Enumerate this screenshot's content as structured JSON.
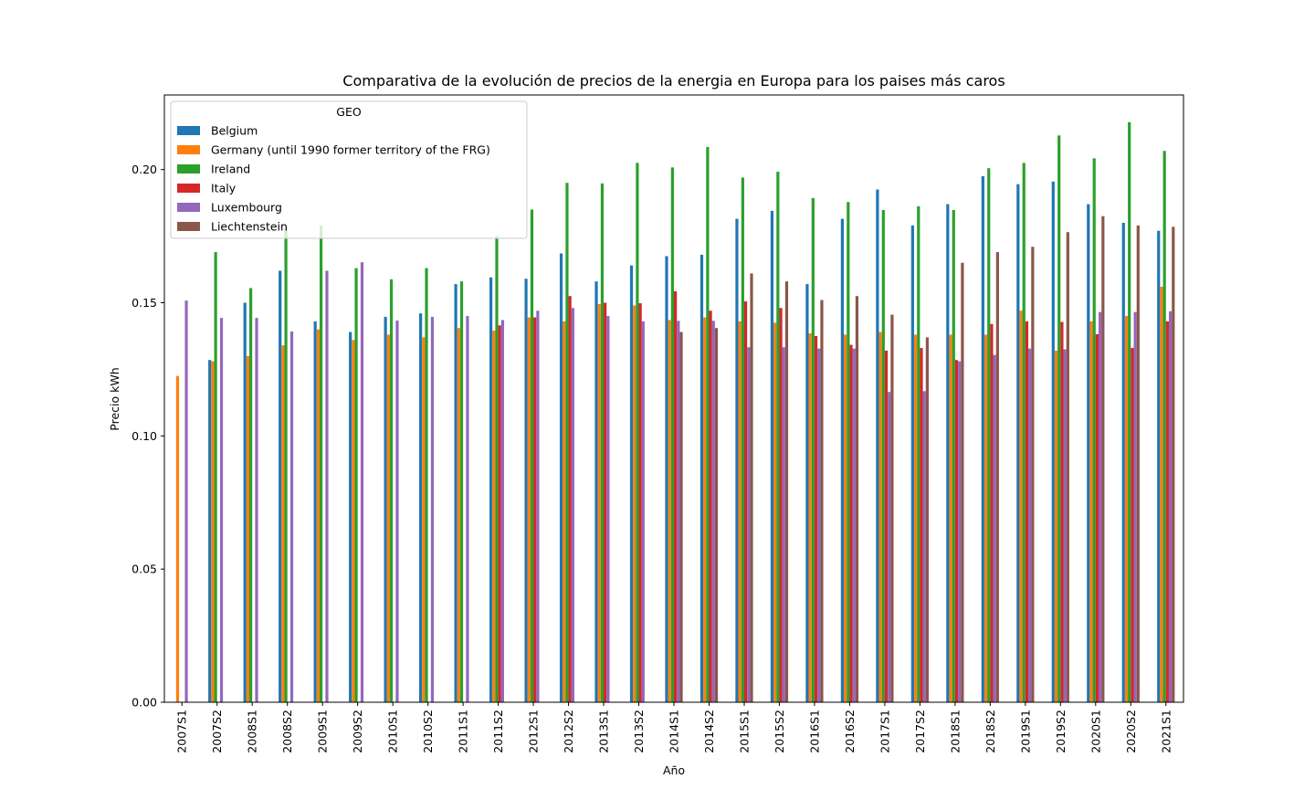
{
  "chart_data": {
    "type": "bar",
    "title": "Comparativa de la evolución de precios de la energia en Europa para los paises más caros",
    "xlabel": "Año",
    "ylabel": "Precio kWh",
    "ylim": [
      0,
      0.228
    ],
    "yticks": [
      0.0,
      0.05,
      0.1,
      0.15,
      0.2
    ],
    "ytick_labels": [
      "0.00",
      "0.05",
      "0.10",
      "0.15",
      "0.20"
    ],
    "grid": false,
    "legend": {
      "title": "GEO",
      "placement": "upper-left"
    },
    "categories": [
      "2007S1",
      "2007S2",
      "2008S1",
      "2008S2",
      "2009S1",
      "2009S2",
      "2010S1",
      "2010S2",
      "2011S1",
      "2011S2",
      "2012S1",
      "2012S2",
      "2013S1",
      "2013S2",
      "2014S1",
      "2014S2",
      "2015S1",
      "2015S2",
      "2016S1",
      "2016S2",
      "2017S1",
      "2017S2",
      "2018S1",
      "2018S2",
      "2019S1",
      "2019S2",
      "2020S1",
      "2020S2",
      "2021S1"
    ],
    "series": [
      {
        "name": "Belgium",
        "color": "#1f77b4",
        "values": [
          null,
          0.1285,
          0.15,
          0.162,
          0.143,
          0.139,
          0.1447,
          0.146,
          0.157,
          0.1595,
          0.159,
          0.1685,
          0.158,
          0.164,
          0.1675,
          0.168,
          0.1815,
          0.1845,
          0.157,
          0.1815,
          0.1925,
          0.179,
          0.187,
          0.1975,
          0.1945,
          0.1955,
          0.187,
          0.18,
          0.177
        ]
      },
      {
        "name": "Germany (until 1990 former territory of the FRG)",
        "color": "#ff7f0e",
        "values": [
          0.1225,
          0.128,
          0.13,
          0.134,
          0.14,
          0.136,
          0.138,
          0.137,
          0.1405,
          0.1395,
          0.1445,
          0.143,
          0.1495,
          0.149,
          0.1435,
          0.1445,
          0.143,
          0.1425,
          0.1385,
          0.138,
          0.139,
          0.138,
          0.138,
          0.138,
          0.147,
          0.132,
          0.143,
          0.145,
          0.156
        ]
      },
      {
        "name": "Ireland",
        "color": "#2ca02c",
        "values": [
          null,
          0.169,
          0.1555,
          0.178,
          0.179,
          0.163,
          0.1588,
          0.163,
          0.158,
          0.175,
          0.185,
          0.195,
          0.1948,
          0.2025,
          0.2008,
          0.2085,
          0.197,
          0.1992,
          0.1893,
          0.1878,
          0.1848,
          0.1862,
          0.1848,
          0.2005,
          0.2025,
          0.2128,
          0.2042,
          0.2178,
          0.207
        ]
      },
      {
        "name": "Italy",
        "color": "#d62728",
        "values": [
          null,
          null,
          null,
          null,
          null,
          null,
          null,
          null,
          null,
          0.1415,
          0.1445,
          0.1525,
          0.15,
          0.1498,
          0.1543,
          0.147,
          0.1505,
          0.148,
          0.1375,
          0.1342,
          0.132,
          0.133,
          0.1285,
          0.142,
          0.143,
          0.1428,
          0.1382,
          0.133,
          0.143
        ]
      },
      {
        "name": "Luxembourg",
        "color": "#9467bd",
        "values": [
          0.1508,
          0.1443,
          0.1443,
          0.1392,
          0.162,
          0.1652,
          0.1433,
          0.1447,
          0.145,
          0.1435,
          0.147,
          0.148,
          0.145,
          0.143,
          0.1432,
          0.1432,
          0.1333,
          0.1333,
          0.1328,
          0.1328,
          0.1165,
          0.1168,
          0.128,
          0.1304,
          0.1328,
          0.1325,
          0.1465,
          0.1465,
          0.1468
        ]
      },
      {
        "name": "Liechtenstein",
        "color": "#8c564b",
        "values": [
          null,
          null,
          null,
          null,
          null,
          null,
          null,
          null,
          null,
          null,
          null,
          null,
          null,
          null,
          0.139,
          0.1405,
          0.161,
          0.158,
          0.151,
          0.1525,
          0.1455,
          0.137,
          0.165,
          0.169,
          0.171,
          0.1765,
          0.1825,
          0.179,
          0.1785
        ]
      }
    ]
  }
}
